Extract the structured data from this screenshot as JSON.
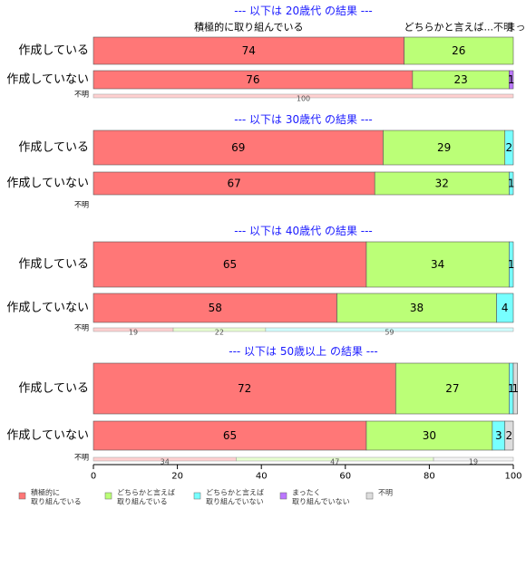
{
  "colors": {
    "active": "#ff7777",
    "somewhat_active": "#bbff77",
    "somewhat_inactive": "#77ffff",
    "not_at_all": "#bb77ff",
    "unknown": "#dddddd",
    "section_title": "#1a1aff"
  },
  "chart_data": {
    "type": "bar",
    "orientation": "horizontal",
    "stacked": true,
    "xlim": [
      0,
      100
    ],
    "x_ticks": [
      "0",
      "20",
      "40",
      "60",
      "80",
      "100"
    ],
    "grid": false,
    "legend_position": "bottom",
    "categories": [
      "作成している",
      "作成していない",
      "不明"
    ],
    "legend": [
      {
        "key": "active",
        "label_lines": [
          "積極的に",
          "取り組んでいる"
        ]
      },
      {
        "key": "somewhat_active",
        "label_lines": [
          "どちらかと言えば",
          "取り組んでいる"
        ]
      },
      {
        "key": "somewhat_inactive",
        "label_lines": [
          "どちらかと言えば",
          "取り組んでいない"
        ]
      },
      {
        "key": "not_at_all",
        "label_lines": [
          "まったく",
          "取り組んでいない"
        ]
      },
      {
        "key": "unknown",
        "label_lines": [
          "不明"
        ]
      }
    ],
    "panels": [
      {
        "title": "--- 以下は 20歳代 の結果 ---",
        "top_annotations": [
          {
            "text": "積極的に取り組んでいる",
            "anchor": "left"
          },
          {
            "text": "どちらかと言えば...",
            "anchor": "right"
          },
          {
            "text": "不明",
            "anchor": "right"
          },
          {
            "text": "まった",
            "anchor": "right"
          }
        ],
        "rows": [
          {
            "label": "作成している",
            "values": [
              74,
              26,
              0,
              0,
              0
            ],
            "labels": [
              "74",
              "26",
              "",
              "",
              ""
            ]
          },
          {
            "label": "作成していない",
            "values": [
              76,
              23,
              0,
              1,
              0
            ],
            "labels": [
              "76",
              "23",
              "",
              "1",
              ""
            ]
          },
          {
            "label": "不明",
            "thin": true,
            "values": [
              100,
              0,
              0,
              0,
              0
            ],
            "labels": [
              "100",
              "",
              "",
              "",
              ""
            ]
          }
        ]
      },
      {
        "title": "--- 以下は 30歳代 の結果 ---",
        "top_annotations": [],
        "rows": [
          {
            "label": "作成している",
            "values": [
              69,
              29,
              2,
              0,
              0
            ],
            "labels": [
              "69",
              "29",
              "2",
              "",
              ""
            ]
          },
          {
            "label": "作成していない",
            "values": [
              67,
              32,
              1,
              0,
              0
            ],
            "labels": [
              "67",
              "32",
              "1",
              "",
              ""
            ]
          },
          {
            "label": "不明",
            "thin": true,
            "values": [],
            "labels": []
          }
        ]
      },
      {
        "title": "--- 以下は 40歳代 の結果 ---",
        "top_annotations": [],
        "rows": [
          {
            "label": "作成している",
            "values": [
              65,
              34,
              1,
              0,
              0
            ],
            "labels": [
              "65",
              "34",
              "1",
              "",
              ""
            ]
          },
          {
            "label": "作成していない",
            "values": [
              58,
              38,
              4,
              0,
              0
            ],
            "labels": [
              "58",
              "38",
              "4",
              "",
              ""
            ]
          },
          {
            "label": "不明",
            "thin": true,
            "values": [
              19,
              22,
              59,
              0,
              0
            ],
            "labels": [
              "19",
              "22",
              "59",
              "",
              ""
            ]
          }
        ]
      },
      {
        "title": "--- 以下は 50歳以上 の結果 ---",
        "top_annotations": [],
        "rows": [
          {
            "label": "作成している",
            "values": [
              72,
              27,
              1,
              0,
              1
            ],
            "labels": [
              "72",
              "27",
              "1",
              "",
              "1"
            ]
          },
          {
            "label": "作成していない",
            "values": [
              65,
              30,
              3,
              0,
              2
            ],
            "labels": [
              "65",
              "30",
              "3",
              "",
              "2"
            ]
          },
          {
            "label": "不明",
            "thin": true,
            "values": [
              34,
              47,
              0,
              0,
              19
            ],
            "labels": [
              "34",
              "47",
              "",
              "",
              "19"
            ]
          }
        ]
      }
    ]
  }
}
